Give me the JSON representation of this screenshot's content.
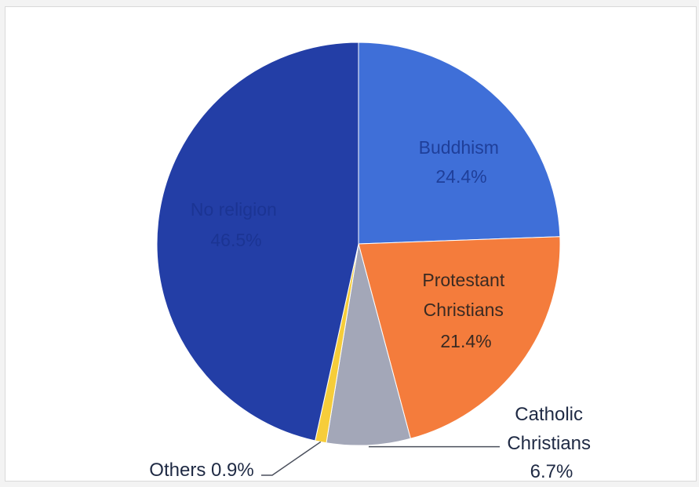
{
  "chart_data": {
    "type": "pie",
    "title": "",
    "slices": [
      {
        "label": "Buddhism",
        "value": 24.4,
        "value_label": "24.4%",
        "color": "#3f6fd8",
        "text_color": "#1f3f9a"
      },
      {
        "label": "Protestant Christians",
        "value": 21.4,
        "value_label": "21.4%",
        "color": "#f47c3c",
        "text_color": "#3a2a22"
      },
      {
        "label": "Catholic Christians",
        "value": 6.7,
        "value_label": "6.7%",
        "color": "#a3a7b8",
        "text_color": "#1f2a44"
      },
      {
        "label": "Others",
        "value": 0.9,
        "value_label": "0.9%",
        "color": "#f6cd3a",
        "text_color": "#1f2a44"
      },
      {
        "label": "No religion",
        "value": 46.5,
        "value_label": "46.5%",
        "color": "#233ea6",
        "text_color": "#1b3493"
      }
    ],
    "label_text": {
      "buddhism": [
        "Buddhism",
        "24.4%"
      ],
      "protestant": [
        "Protestant",
        "Christians",
        "21.4%"
      ],
      "catholic": [
        "Catholic",
        "Christians",
        "6.7%"
      ],
      "others": [
        "Others 0.9%"
      ],
      "no_religion": [
        "No religion",
        "46.5%"
      ]
    },
    "legend": "none",
    "start_angle_deg": 0,
    "direction": "clockwise"
  }
}
